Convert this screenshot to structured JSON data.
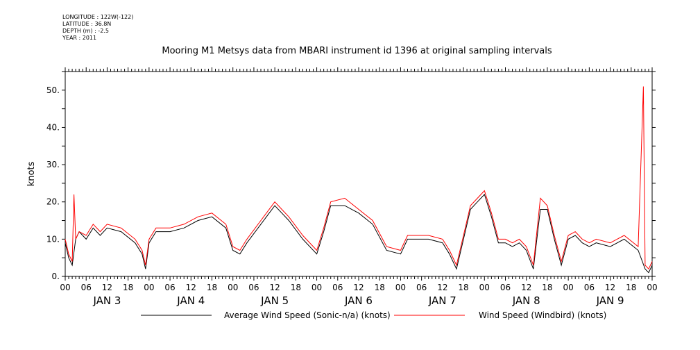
{
  "meta": {
    "longitude": "LONGITUDE : 122W(-122)",
    "latitude": "LATITUDE : 36.8N",
    "depth": "DEPTH (m) : -2.5",
    "year": "YEAR : 2011"
  },
  "chart_data": {
    "type": "line",
    "title": "Mooring M1 Metsys data from MBARI instrument id 1396 at original sampling intervals",
    "ylabel": "knots",
    "xlabel": "",
    "ylim": [
      0,
      55
    ],
    "yticks": [
      0,
      10,
      20,
      30,
      40,
      50
    ],
    "ytick_labels": [
      "0.",
      "10.",
      "20.",
      "30.",
      "40.",
      "50."
    ],
    "xlim_hours": [
      0,
      168
    ],
    "xtick_hours": [
      0,
      6,
      12,
      18,
      24,
      30,
      36,
      42,
      48,
      54,
      60,
      66,
      72,
      78,
      84,
      90,
      96,
      102,
      108,
      114,
      120,
      126,
      132,
      138,
      144,
      150,
      156,
      162,
      168
    ],
    "xtick_labels": [
      "00",
      "06",
      "12",
      "18",
      "00",
      "06",
      "12",
      "18",
      "00",
      "06",
      "12",
      "18",
      "00",
      "06",
      "12",
      "18",
      "00",
      "06",
      "12",
      "18",
      "00",
      "06",
      "12",
      "18",
      "00",
      "06",
      "12",
      "18",
      "00"
    ],
    "day_labels": [
      "JAN 3",
      "JAN 4",
      "JAN 5",
      "JAN 6",
      "JAN 7",
      "JAN 8",
      "JAN 9"
    ],
    "grid": false,
    "legend_placement": "bottom",
    "series": [
      {
        "name": "Average Wind Speed (Sonic-n/a) (knots)",
        "color": "#000000",
        "x_hours": [
          0,
          1,
          2,
          3,
          4,
          6,
          8,
          10,
          12,
          16,
          20,
          22,
          23,
          24,
          26,
          30,
          34,
          38,
          42,
          46,
          48,
          50,
          52,
          56,
          60,
          62,
          64,
          68,
          72,
          74,
          76,
          80,
          84,
          88,
          92,
          96,
          98,
          100,
          104,
          108,
          110,
          112,
          114,
          116,
          118,
          120,
          122,
          124,
          126,
          128,
          130,
          132,
          134,
          136,
          138,
          140,
          142,
          144,
          146,
          148,
          150,
          152,
          156,
          160,
          164,
          166,
          167,
          168
        ],
        "values": [
          9,
          5,
          3,
          10,
          12,
          10,
          13,
          11,
          13,
          12,
          9,
          6,
          2,
          9,
          12,
          12,
          13,
          15,
          16,
          13,
          7,
          6,
          9,
          14,
          19,
          17,
          15,
          10,
          6,
          12,
          19,
          19,
          17,
          14,
          7,
          6,
          10,
          10,
          10,
          9,
          6,
          2,
          10,
          18,
          20,
          22,
          16,
          9,
          9,
          8,
          9,
          7,
          2,
          18,
          18,
          10,
          3,
          10,
          11,
          9,
          8,
          9,
          8,
          10,
          7,
          2,
          1,
          3
        ]
      },
      {
        "name": "Wind Speed (Windbird) (knots)",
        "color": "#ff0000",
        "x_hours": [
          0,
          1,
          2,
          2.5,
          3,
          4,
          6,
          8,
          10,
          12,
          16,
          20,
          22,
          23,
          24,
          26,
          30,
          34,
          38,
          42,
          46,
          48,
          50,
          52,
          56,
          60,
          62,
          64,
          68,
          72,
          74,
          76,
          80,
          84,
          88,
          92,
          96,
          98,
          100,
          104,
          108,
          110,
          112,
          114,
          116,
          118,
          120,
          122,
          124,
          126,
          128,
          130,
          132,
          134,
          136,
          138,
          140,
          142,
          144,
          146,
          148,
          150,
          152,
          156,
          160,
          164,
          165.5,
          166,
          167,
          168
        ],
        "values": [
          10,
          6,
          4,
          22,
          10,
          12,
          11,
          14,
          12,
          14,
          13,
          10,
          7,
          3,
          10,
          13,
          13,
          14,
          16,
          17,
          14,
          8,
          7,
          10,
          15,
          20,
          18,
          16,
          11,
          7,
          13,
          20,
          21,
          18,
          15,
          8,
          7,
          11,
          11,
          11,
          10,
          7,
          3,
          11,
          19,
          21,
          23,
          17,
          10,
          10,
          9,
          10,
          8,
          3,
          21,
          19,
          11,
          4,
          11,
          12,
          10,
          9,
          10,
          9,
          11,
          8,
          51,
          3,
          2,
          4
        ]
      }
    ]
  }
}
